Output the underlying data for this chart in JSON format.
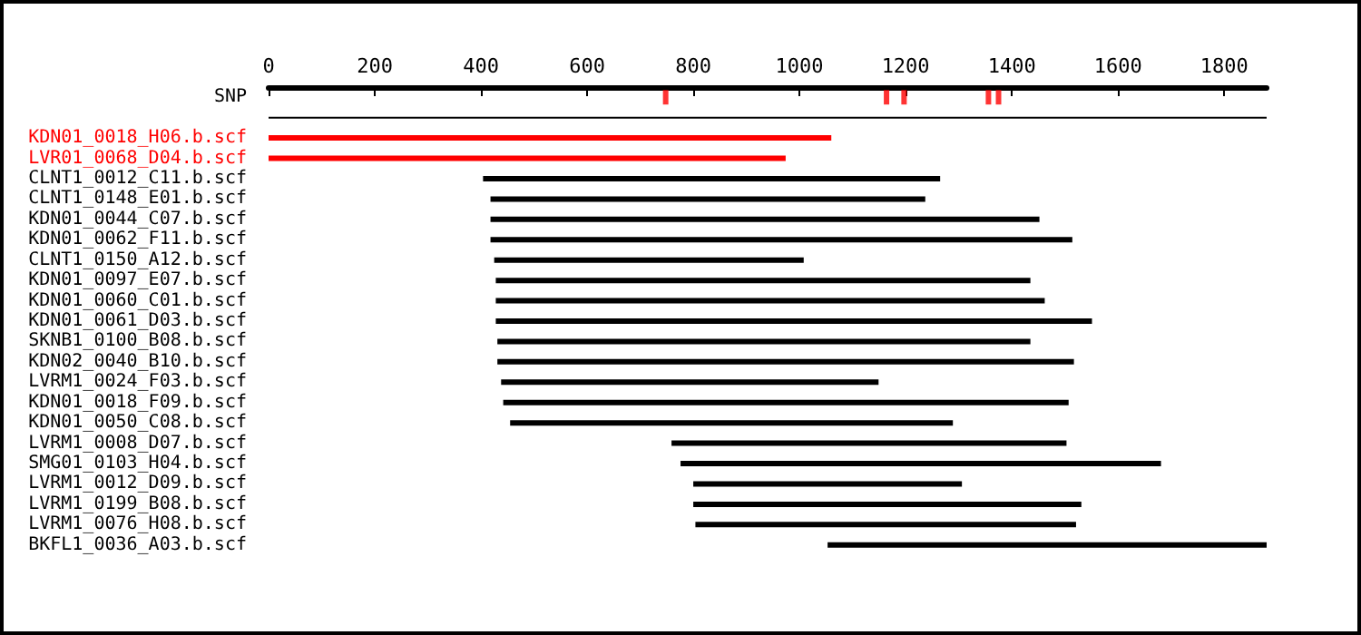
{
  "chart_data": {
    "type": "bar",
    "orientation": "horizontal",
    "categories": [
      "SNP",
      null,
      "KDN01_0018_H06.b.scf",
      "LVR01_0068_D04.b.scf",
      "CLNT1_0012_C11.b.scf",
      "CLNT1_0148_E01.b.scf",
      "KDN01_0044_C07.b.scf",
      "KDN01_0062_F11.b.scf",
      "CLNT1_0150_A12.b.scf",
      "KDN01_0097_E07.b.scf",
      "KDN01_0060_C01.b.scf",
      "KDN01_0061_D03.b.scf",
      "SKNB1_0100_B08.b.scf",
      "KDN02_0040_B10.b.scf",
      "LVRM1_0024_F03.b.scf",
      "KDN01_0018_F09.b.scf",
      "KDN01_0050_C08.b.scf",
      "LVRM1_0008_D07.b.scf",
      "SMG01_0103_H04.b.scf",
      "LVRM1_0012_D09.b.scf",
      "LVRM1_0199_B08.b.scf",
      "LVRM1_0076_H08.b.scf",
      "BKFL1_0036_A03.b.scf"
    ],
    "xlim": [
      0,
      1880
    ],
    "xticks": [
      0,
      200,
      400,
      600,
      800,
      1000,
      1200,
      1400,
      1600,
      1800
    ],
    "series": [
      {
        "type": "bar",
        "base": [
          null,
          0,
          0,
          0,
          404,
          418,
          418,
          418,
          425,
          428,
          428,
          428,
          431,
          431,
          438,
          442,
          455,
          759,
          776,
          800,
          800,
          804,
          1053
        ],
        "values": [
          null,
          1880,
          1060,
          974,
          861,
          819,
          1034,
          1096,
          583,
          1007,
          1034,
          1123,
          1004,
          1086,
          711,
          1065,
          834,
          744,
          905,
          506,
          731,
          717,
          827
        ],
        "colors": [
          "#000000",
          "#000000",
          "#ff0000",
          "#ff0000",
          "#000000",
          "#000000",
          "#000000",
          "#000000",
          "#000000",
          "#000000",
          "#000000",
          "#000000",
          "#000000",
          "#000000",
          "#000000",
          "#000000",
          "#000000",
          "#000000",
          "#000000",
          "#000000",
          "#000000",
          "#000000",
          "#000000"
        ]
      },
      {
        "type": "scatter",
        "marker": "square",
        "color": "#ff0000",
        "x": [
          "SNP",
          "SNP",
          "SNP",
          "SNP",
          "SNP"
        ],
        "values": [
          748,
          1164,
          1197,
          1356,
          1375
        ]
      }
    ]
  }
}
